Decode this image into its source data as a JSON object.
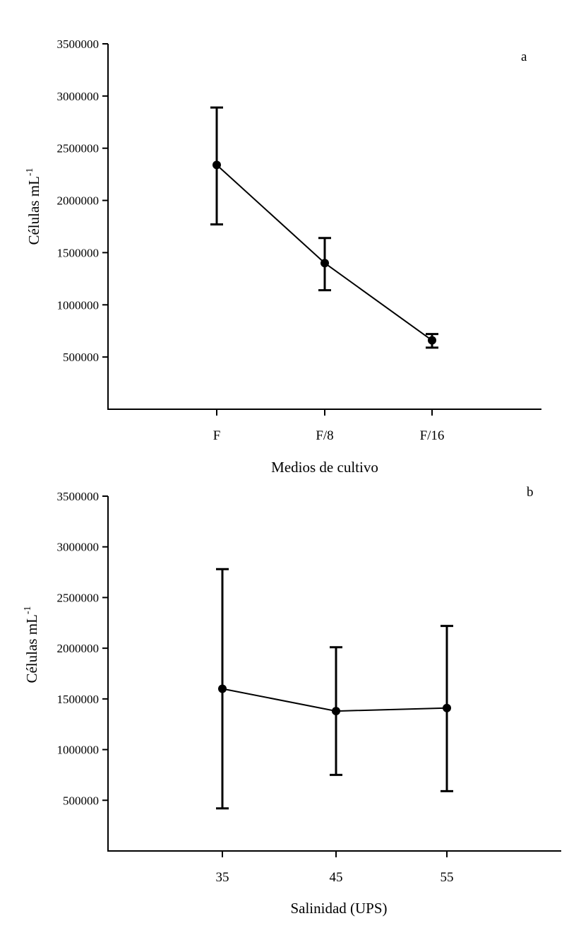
{
  "chart_data": [
    {
      "type": "line",
      "panel": "a",
      "categories": [
        "F",
        "F/8",
        "F/16"
      ],
      "values": [
        2340000,
        1400000,
        660000
      ],
      "error_low": [
        1770000,
        1140000,
        590000
      ],
      "error_high": [
        2890000,
        1640000,
        720000
      ],
      "xlabel": "Medios de cultivo",
      "ylabel": "Células mL",
      "ylabel_superscript": "-1",
      "ylim": [
        0,
        3500000
      ],
      "yticks": [
        500000,
        1000000,
        1500000,
        2000000,
        2500000,
        3000000,
        3500000
      ],
      "ytick_labels": [
        "500000",
        "1000000",
        "1500000",
        "2000000",
        "2500000",
        "3000000",
        "3500000"
      ]
    },
    {
      "type": "line",
      "panel": "b",
      "categories": [
        "35",
        "45",
        "55"
      ],
      "values": [
        1600000,
        1380000,
        1410000
      ],
      "error_low": [
        420000,
        750000,
        590000
      ],
      "error_high": [
        2780000,
        2010000,
        2220000
      ],
      "xlabel": "Salinidad (UPS)",
      "ylabel": "Células mL",
      "ylabel_superscript": "-1",
      "ylim": [
        0,
        3500000
      ],
      "yticks": [
        500000,
        1000000,
        1500000,
        2000000,
        2500000,
        3000000,
        3500000
      ],
      "ytick_labels": [
        "500000",
        "1000000",
        "1500000",
        "2000000",
        "2500000",
        "3000000",
        "3500000"
      ]
    }
  ]
}
